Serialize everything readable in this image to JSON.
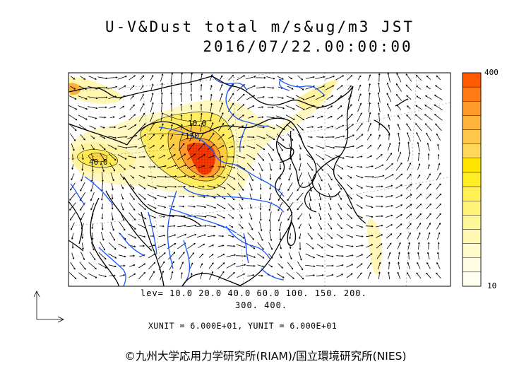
{
  "title_line1": "U-V&Dust total m/s&ug/m3 JST",
  "title_line2": "2016/07/22.00:00:00",
  "levels_line1": "lev= 10.0 20.0 40.0 60.0 100. 150. 200.",
  "levels_line2": "300. 400.",
  "units_line": "XUNIT = 6.000E+01, YUNIT = 6.000E+01",
  "copyright": "©九州大学応用力学研究所(RIAM)/国立環境研究所(NIES)",
  "colorbar": {
    "max_label": "400",
    "min_label": "10",
    "colors": [
      "#ff5a00",
      "#ff7a14",
      "#ff9a2a",
      "#ffb43c",
      "#ffc84c",
      "#ffd85a",
      "#ffe600",
      "#ffee22",
      "#fff155",
      "#fff37a",
      "#fff599",
      "#fff8b4",
      "#fffbcd",
      "#fffde2",
      "#fffff0"
    ]
  },
  "contour_labels": [
    {
      "text": "10.0"
    },
    {
      "text": "150"
    },
    {
      "text": "40.0"
    }
  ],
  "colors": {
    "coast": "#000000",
    "river": "#1a55ff",
    "grid": "#555555"
  }
}
